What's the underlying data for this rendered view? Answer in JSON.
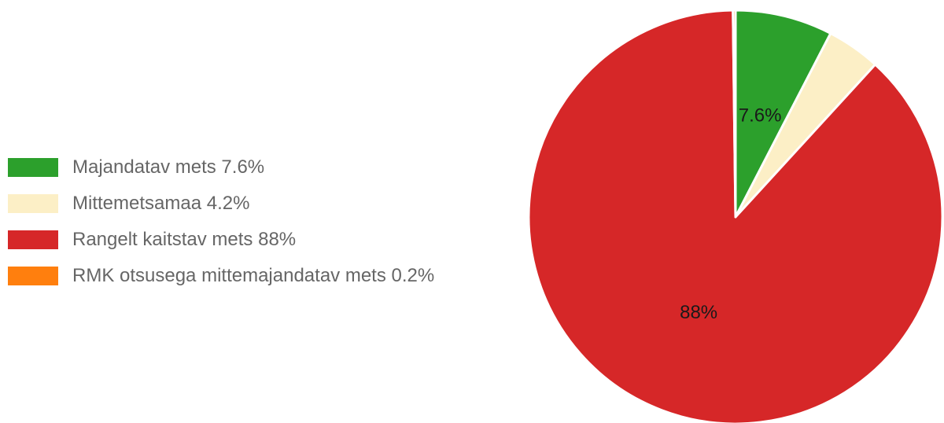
{
  "chart_data": {
    "type": "pie",
    "title": "",
    "legend_position": "left",
    "slices": [
      {
        "label": "Majandatav mets",
        "value": 7.6,
        "legend_text": "Majandatav mets 7.6%",
        "slice_label": "7.6%",
        "color": "#2ca02c"
      },
      {
        "label": "Mittemetsamaa",
        "value": 4.2,
        "legend_text": "Mittemetsamaa 4.2%",
        "slice_label": "",
        "color": "#fcefc6"
      },
      {
        "label": "Rangelt kaitstav mets",
        "value": 88,
        "legend_text": "Rangelt kaitstav mets 88%",
        "slice_label": "88%",
        "color": "#d62728"
      },
      {
        "label": "RMK otsusega mittemajandatav mets",
        "value": 0.2,
        "legend_text": "RMK otsusega mittemajandatav mets 0.2%",
        "slice_label": "",
        "color": "#ff7f0e"
      }
    ]
  }
}
